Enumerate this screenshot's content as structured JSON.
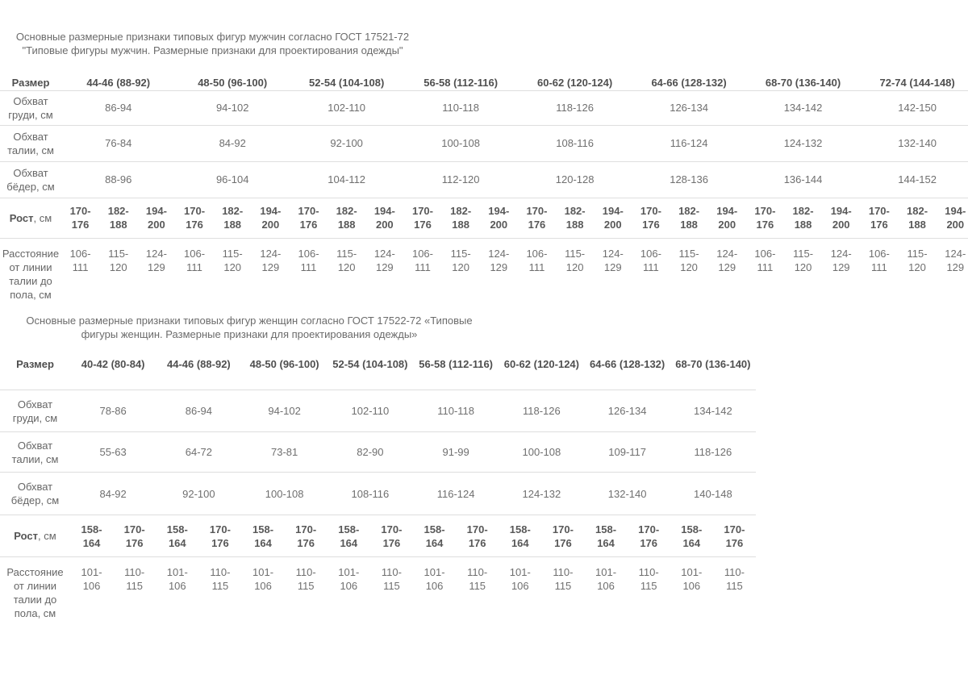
{
  "page": {
    "background": "#ffffff",
    "text_color": "#676767",
    "border_color": "#dedede"
  },
  "tables": [
    {
      "name": "men",
      "title": "Основные размерные признаки типовых фигур мужчин согласно ГОСТ 17521-72 \"Типовые фигуры мужчин. Размерные признаки для проектирования одежды\"",
      "header_label": "Размер",
      "sizes": [
        "44-46 (88-92)",
        "48-50 (96-100)",
        "52-54 (104-108)",
        "56-58 (112-116)",
        "60-62 (120-124)",
        "64-66 (128-132)",
        "68-70 (136-140)",
        "72-74 (144-148)"
      ],
      "measure_rows": [
        {
          "label": "Обхват груди, см",
          "values": [
            "86-94",
            "94-102",
            "102-110",
            "110-118",
            "118-126",
            "126-134",
            "134-142",
            "142-150"
          ]
        },
        {
          "label": "Обхват талии, см",
          "values": [
            "76-84",
            "84-92",
            "92-100",
            "100-108",
            "108-116",
            "116-124",
            "124-132",
            "132-140"
          ]
        },
        {
          "label": "Обхват бёдер, см",
          "values": [
            "88-96",
            "96-104",
            "104-112",
            "112-120",
            "120-128",
            "128-136",
            "136-144",
            "144-152"
          ]
        }
      ],
      "height_row": {
        "label_bold": "Рост",
        "label_rest": ", см",
        "per_size": [
          "170-176",
          "182-188",
          "194-200"
        ]
      },
      "distance_row": {
        "label": "Расстояние от линии талии до пола, см",
        "per_size": [
          "106-111",
          "115-120",
          "124-129"
        ]
      }
    },
    {
      "name": "women",
      "title": "Основные размерные признаки типовых фигур женщин согласно ГОСТ 17522-72 «Типовые фигуры женщин. Размерные признаки для проектирования одежды»",
      "header_label": "Размер",
      "sizes": [
        "40-42 (80-84)",
        "44-46 (88-92)",
        "48-50 (96-100)",
        "52-54 (104-108)",
        "56-58 (112-116)",
        "60-62 (120-124)",
        "64-66 (128-132)",
        "68-70 (136-140)"
      ],
      "measure_rows": [
        {
          "label": "Обхват груди, см",
          "values": [
            "78-86",
            "86-94",
            "94-102",
            "102-110",
            "110-118",
            "118-126",
            "126-134",
            "134-142"
          ]
        },
        {
          "label": "Обхват талии, см",
          "values": [
            "55-63",
            "64-72",
            "73-81",
            "82-90",
            "91-99",
            "100-108",
            "109-117",
            "118-126"
          ]
        },
        {
          "label": "Обхват бёдер, см",
          "values": [
            "84-92",
            "92-100",
            "100-108",
            "108-116",
            "116-124",
            "124-132",
            "132-140",
            "140-148"
          ]
        }
      ],
      "height_row": {
        "label_bold": "Рост",
        "label_rest": ", см",
        "per_size": [
          "158-164",
          "170-176"
        ]
      },
      "distance_row": {
        "label": "Расстояние от линии талии до пола, см",
        "per_size": [
          "101-106",
          "110-115"
        ]
      }
    }
  ]
}
